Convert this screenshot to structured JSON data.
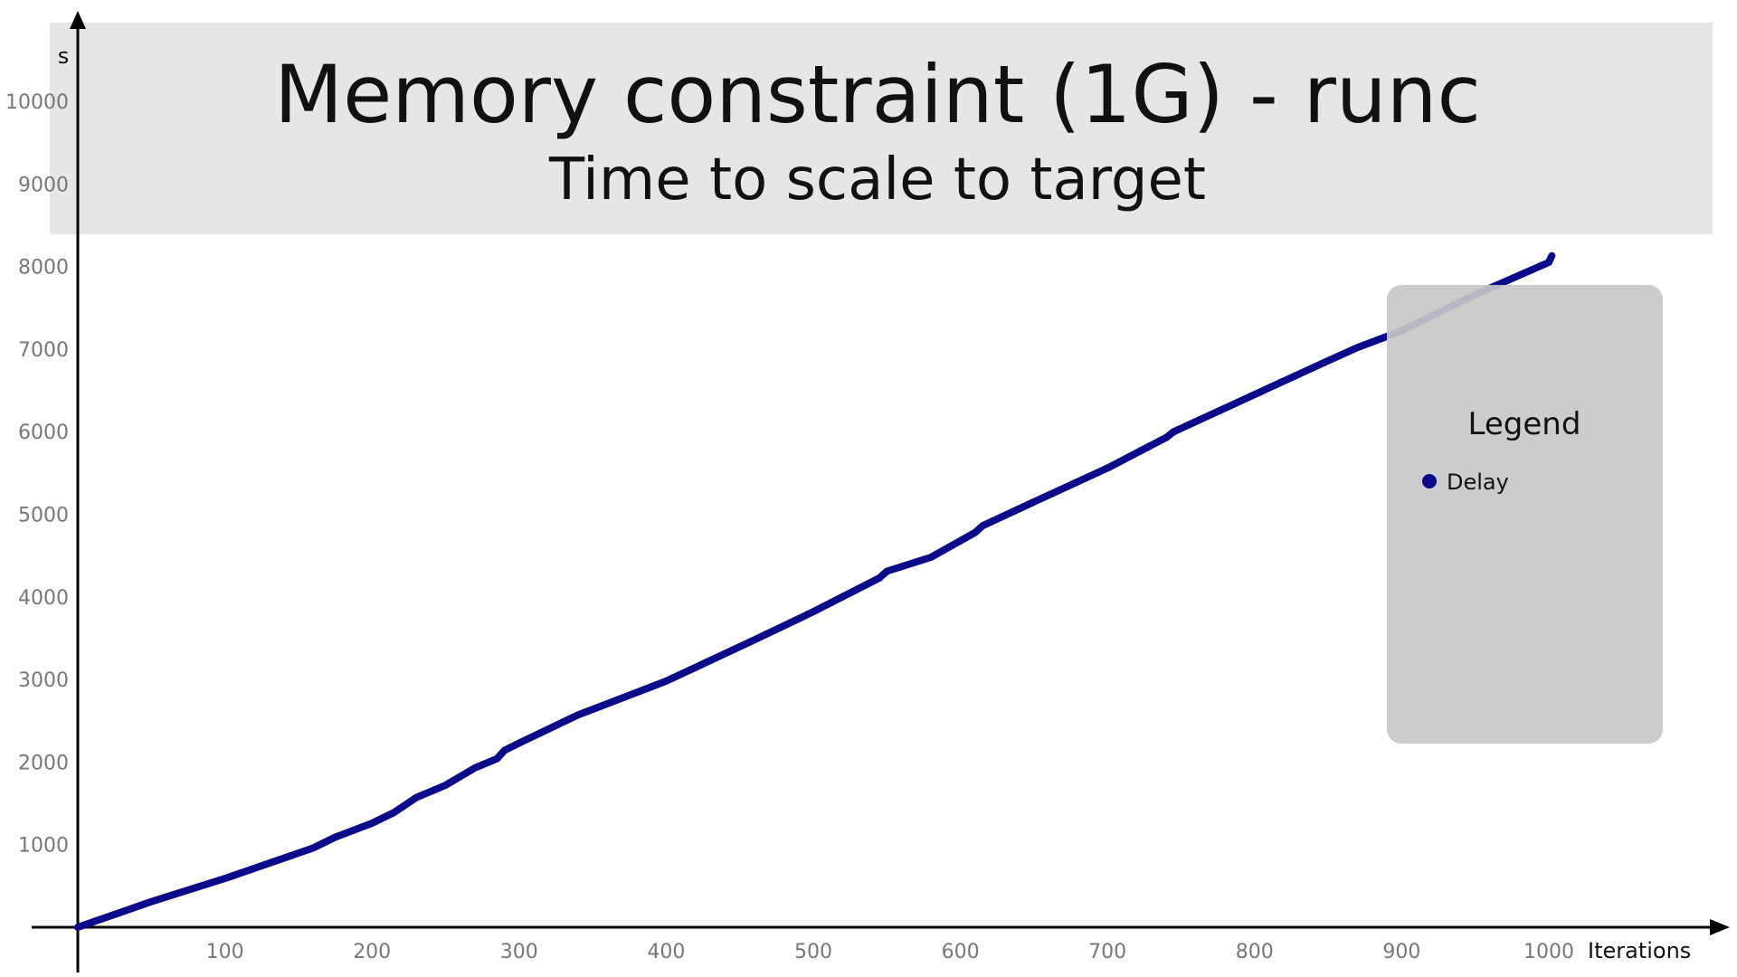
{
  "chart_data": {
    "type": "line",
    "title": "Memory constraint (1G) - runc",
    "subtitle": "Time to scale to target",
    "xlabel": "Iterations",
    "ylabel": "s",
    "xlim": [
      0,
      1100
    ],
    "ylim": [
      0,
      10900
    ],
    "x_ticks": [
      100,
      200,
      300,
      400,
      500,
      600,
      700,
      800,
      900,
      1000
    ],
    "y_ticks": [
      1000,
      2000,
      3000,
      4000,
      5000,
      6000,
      7000,
      8000,
      9000,
      10000
    ],
    "grid": false,
    "legend": {
      "title": "Legend",
      "position": "right"
    },
    "series": [
      {
        "name": "Delay",
        "color": "#0b0b8a",
        "x": [
          0,
          50,
          100,
          160,
          175,
          200,
          215,
          230,
          250,
          270,
          285,
          290,
          300,
          340,
          400,
          460,
          500,
          545,
          550,
          580,
          610,
          615,
          650,
          700,
          740,
          745,
          800,
          850,
          870,
          900,
          950,
          1000,
          1002
        ],
        "y": [
          0,
          310,
          590,
          960,
          1090,
          1260,
          1390,
          1570,
          1720,
          1930,
          2040,
          2140,
          2230,
          2570,
          2980,
          3480,
          3820,
          4230,
          4310,
          4480,
          4780,
          4860,
          5150,
          5560,
          5930,
          6000,
          6450,
          6860,
          7020,
          7220,
          7660,
          8050,
          8130
        ]
      }
    ]
  }
}
